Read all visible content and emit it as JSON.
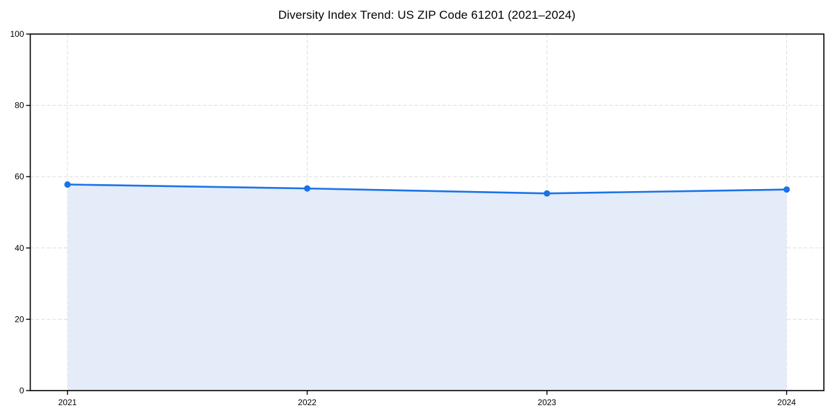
{
  "chart_data": {
    "type": "area",
    "title": "Diversity Index Trend: US ZIP Code 61201 (2021–2024)",
    "categories": [
      "2021",
      "2022",
      "2023",
      "2024"
    ],
    "values": [
      57.8,
      56.7,
      55.3,
      56.4
    ],
    "xlabel": "",
    "ylabel": "",
    "ylim": [
      0,
      100
    ],
    "yticks": [
      0,
      20,
      40,
      60,
      80,
      100
    ],
    "grid": "dashed-both-axes",
    "legend_position": "none",
    "marker_style": "filled-circle",
    "colors": {
      "line": "#1a73e8",
      "marker": "#1a73e8",
      "fill": "#e4ecfa",
      "gridline": "#dcdcdc",
      "axis": "#000000",
      "tick_text": "#000000",
      "background": "#ffffff"
    }
  }
}
